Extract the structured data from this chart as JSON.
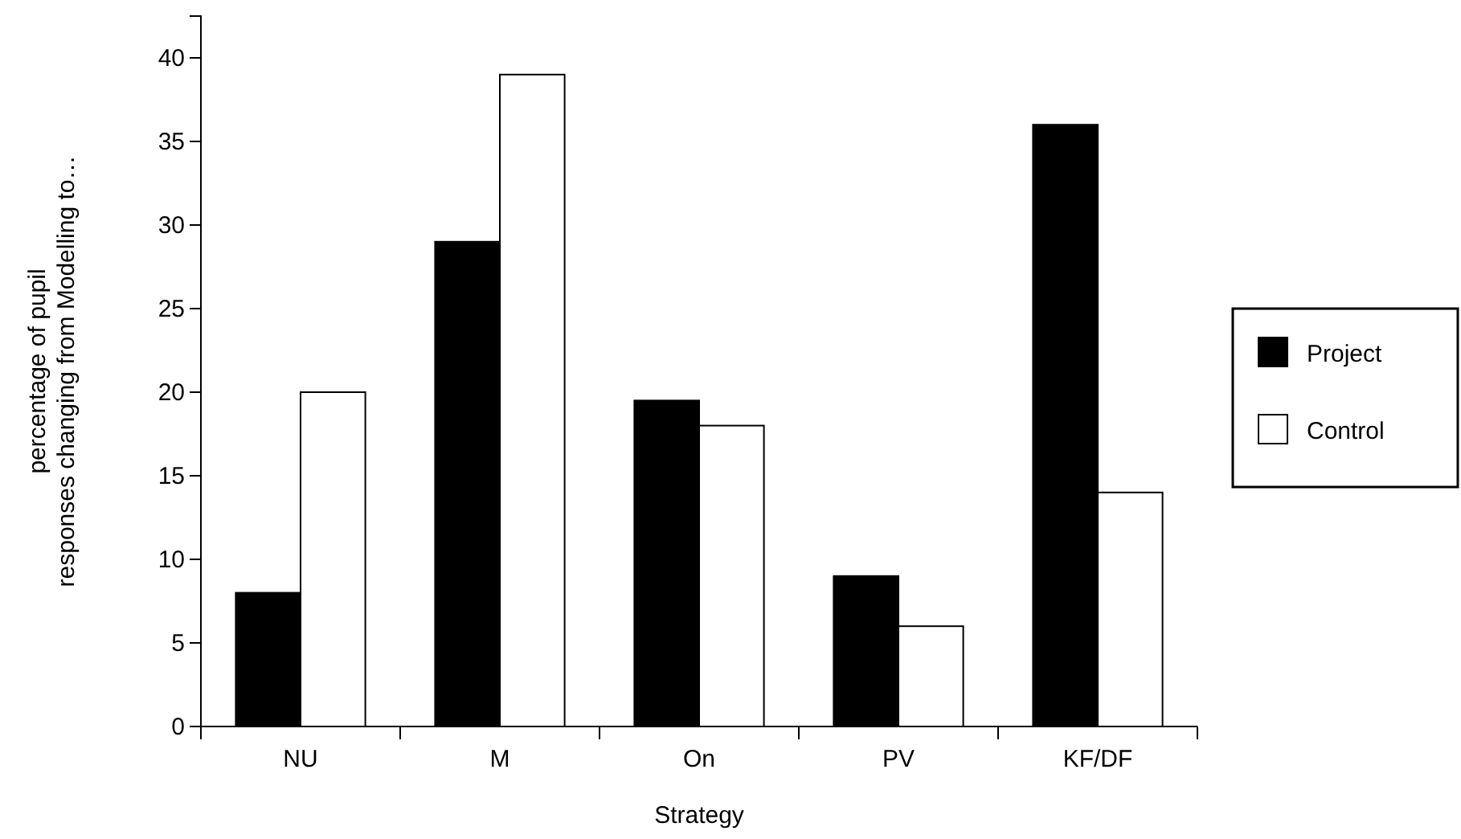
{
  "chart_data": {
    "type": "bar",
    "xlabel": "Strategy",
    "ylabel": "percentage of pupil responses changing from Modelling to…",
    "categories": [
      "NU",
      "M",
      "On",
      "PV",
      "KF/DF"
    ],
    "series": [
      {
        "name": "Project",
        "color": "#000000",
        "values": [
          8,
          29,
          19.5,
          9,
          36
        ]
      },
      {
        "name": "Control",
        "color": "#ffffff",
        "values": [
          20,
          39,
          18,
          6,
          14
        ]
      }
    ],
    "ylim": [
      0,
      42.5
    ],
    "yticks": [
      0,
      5,
      10,
      15,
      20,
      25,
      30,
      35,
      40
    ],
    "legend": "right",
    "grid": false
  }
}
